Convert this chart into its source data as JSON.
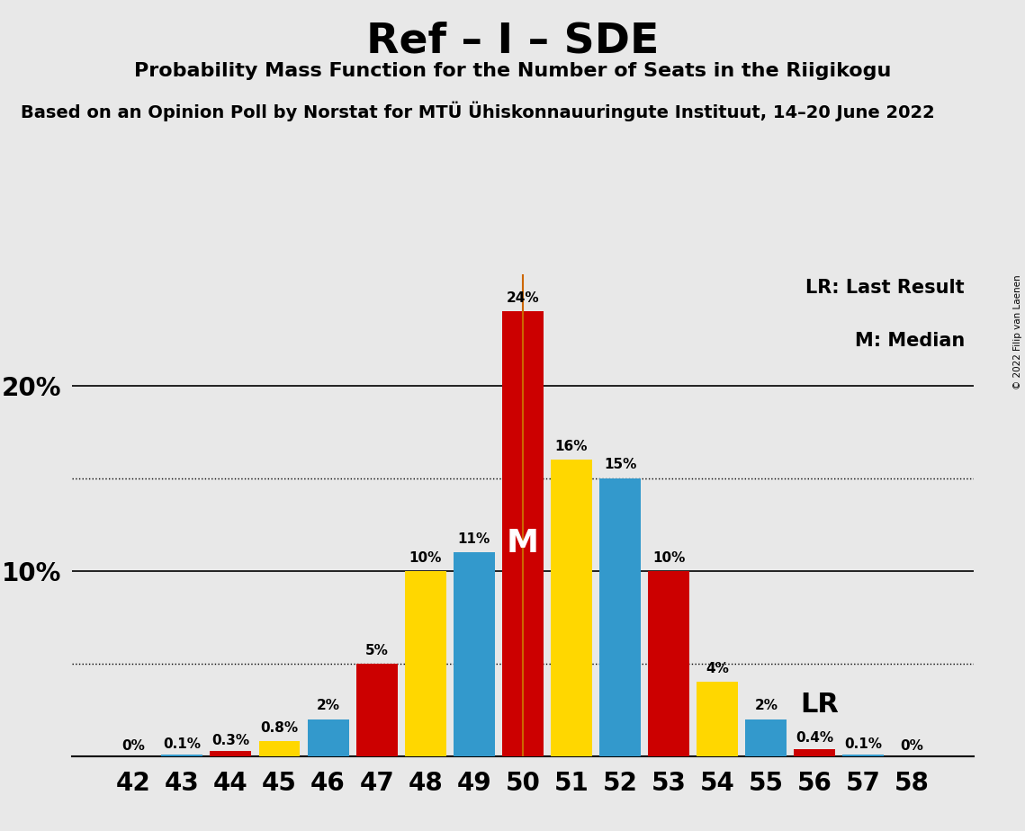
{
  "title": "Ref – I – SDE",
  "subtitle": "Probability Mass Function for the Number of Seats in the Riigikogu",
  "source_text": "Based on an Opinion Poll by Norstat for MTÜ Ühiskonnauuringute Instituut, 14–20 June 2022",
  "copyright_text": "© 2022 Filip van Laenen",
  "seats": [
    42,
    43,
    44,
    45,
    46,
    47,
    48,
    49,
    50,
    51,
    52,
    53,
    54,
    55,
    56,
    57,
    58
  ],
  "bar_heights": [
    0.0,
    0.1,
    0.3,
    0.8,
    2.0,
    5.0,
    10.0,
    11.0,
    24.0,
    16.0,
    15.0,
    10.0,
    4.0,
    2.0,
    0.4,
    0.1,
    0.0
  ],
  "bar_colors": [
    "#3399CC",
    "#3399CC",
    "#CC0000",
    "#FFD700",
    "#3399CC",
    "#CC0000",
    "#FFD700",
    "#3399CC",
    "#CC0000",
    "#FFD700",
    "#3399CC",
    "#CC0000",
    "#FFD700",
    "#3399CC",
    "#CC0000",
    "#3399CC",
    "#CC0000"
  ],
  "bar_labels": [
    "0%",
    "0.1%",
    "0.3%",
    "0.8%",
    "2%",
    "5%",
    "10%",
    "11%",
    "24%",
    "16%",
    "15%",
    "10%",
    "4%",
    "2%",
    "0.4%",
    "0.1%",
    "0%"
  ],
  "blue_color": "#3399CC",
  "yellow_color": "#FFD700",
  "red_color": "#CC0000",
  "lr_line_color": "#CC6600",
  "lr_seat": 50,
  "median_seat": 50,
  "median_label": "M",
  "lr_label": "LR",
  "legend_lr": "LR: Last Result",
  "legend_m": "M: Median",
  "ylim_max": 26,
  "dotted_lines": [
    5,
    15
  ],
  "solid_lines": [
    10,
    20
  ],
  "background_color": "#E8E8E8"
}
